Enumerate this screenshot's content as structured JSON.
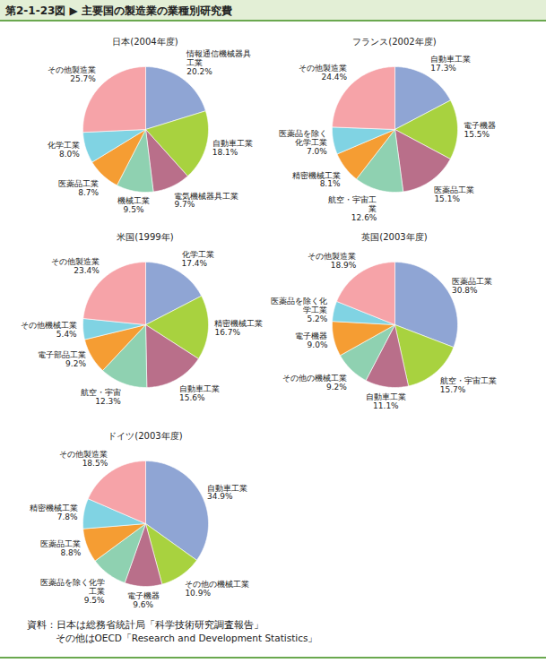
{
  "title": "第2-1-23図 ▶ 主要国の製造業の業種別研究費",
  "source": [
    "資料：日本は総務省統計局「科学技術研究調査報告」",
    "その他はOECD「Research and Development Statistics」"
  ],
  "chart_data": [
    {
      "type": "pie",
      "title": "日本(2004年度)",
      "categories": [
        "情報通信機械器具\n工業",
        "自動車工業",
        "電気機械器具工業",
        "機械工業",
        "医薬品工業",
        "化学工業",
        "その他製造業"
      ],
      "values": [
        20.2,
        18.1,
        9.7,
        9.5,
        8.7,
        8.0,
        25.7
      ],
      "value_labels": [
        "20.2%",
        "18.1%",
        "9.7%",
        "9.5%",
        "8.7%",
        "8.0%",
        "25.7%"
      ],
      "colors": [
        "#8fa5d4",
        "#a8d23f",
        "#b96f8a",
        "#8fd1b1",
        "#f59d33",
        "#80d3e3",
        "#f6a3a8"
      ],
      "data_labels": true
    },
    {
      "type": "pie",
      "title": "フランス(2002年度)",
      "categories": [
        "自動車工業",
        "電子機器",
        "医薬品工業",
        "航空・宇宙工\n業",
        "精密機械工業",
        "医薬品を除く\n化学工業",
        "その他製造業"
      ],
      "values": [
        17.3,
        15.5,
        15.1,
        12.6,
        8.1,
        7.0,
        24.4
      ],
      "value_labels": [
        "17.3%",
        "15.5%",
        "15.1%",
        "12.6%",
        "8.1%",
        "7.0%",
        "24.4%"
      ],
      "colors": [
        "#8fa5d4",
        "#a8d23f",
        "#b96f8a",
        "#8fd1b1",
        "#f59d33",
        "#80d3e3",
        "#f6a3a8"
      ],
      "data_labels": true
    },
    {
      "type": "pie",
      "title": "米国(1999年)",
      "categories": [
        "化学工業",
        "精密機械工業",
        "自動車工業",
        "航空・宇宙",
        "電子部品工業",
        "その他機械工業",
        "その他製造業"
      ],
      "values": [
        17.4,
        16.7,
        15.6,
        12.3,
        9.2,
        5.4,
        23.4
      ],
      "value_labels": [
        "17.4%",
        "16.7%",
        "15.6%",
        "12.3%",
        "9.2%",
        "5.4%",
        "23.4%"
      ],
      "colors": [
        "#8fa5d4",
        "#a8d23f",
        "#b96f8a",
        "#8fd1b1",
        "#f59d33",
        "#80d3e3",
        "#f6a3a8"
      ],
      "data_labels": true
    },
    {
      "type": "pie",
      "title": "英国(2003年度)",
      "categories": [
        "医薬品工業",
        "航空・宇宙工業",
        "自動車工業",
        "その他の機械工業",
        "電子機器",
        "医薬品を除く化\n学工業",
        "その他製造業"
      ],
      "values": [
        30.8,
        15.7,
        11.1,
        9.2,
        9.0,
        5.2,
        18.9
      ],
      "value_labels": [
        "30.8%",
        "15.7%",
        "11.1%",
        "9.2%",
        "9.0%",
        "5.2%",
        "18.9%"
      ],
      "colors": [
        "#8fa5d4",
        "#a8d23f",
        "#b96f8a",
        "#8fd1b1",
        "#f59d33",
        "#80d3e3",
        "#f6a3a8"
      ],
      "data_labels": true
    },
    {
      "type": "pie",
      "title": "ドイツ(2003年度)",
      "categories": [
        "自動車工業",
        "その他の機械工業",
        "電子機器",
        "医薬品を除く化学\n工業",
        "医薬品工業",
        "精密機械工業",
        "その他製造業"
      ],
      "values": [
        34.9,
        10.9,
        9.6,
        9.5,
        8.8,
        7.8,
        18.5
      ],
      "value_labels": [
        "34.9%",
        "10.9%",
        "9.6%",
        "9.5%",
        "8.8%",
        "7.8%",
        "18.5%"
      ],
      "colors": [
        "#8fa5d4",
        "#a8d23f",
        "#b96f8a",
        "#8fd1b1",
        "#f59d33",
        "#80d3e3",
        "#f6a3a8"
      ],
      "data_labels": true
    }
  ]
}
